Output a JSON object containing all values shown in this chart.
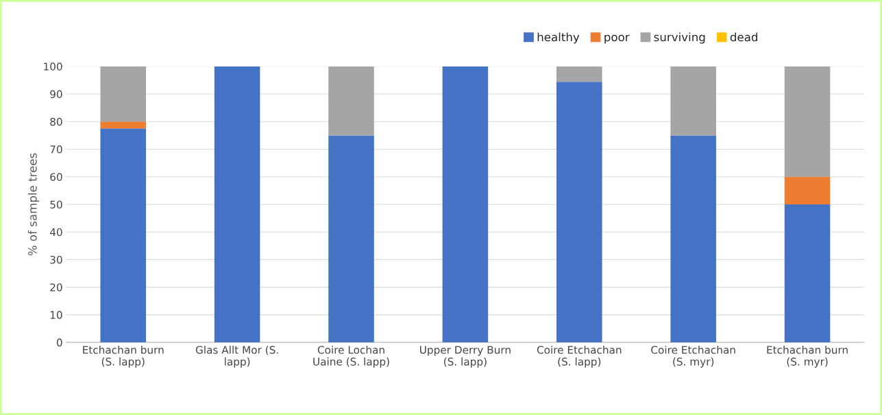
{
  "chart_data": {
    "type": "bar",
    "stacked": true,
    "ylabel": "% of sample trees",
    "categories": [
      "Etchachan burn\n(S. lapp)",
      "Glas Allt Mor (S.\nlapp)",
      "Coire Lochan\nUaine (S. lapp)",
      "Upper Derry Burn\n(S. lapp)",
      "Coire Etchachan\n(S. lapp)",
      "Coire Etchachan\n(S. myr)",
      "Etchachan burn\n(S. myr)"
    ],
    "series": [
      {
        "name": "healthy",
        "color": "#4472c4",
        "values": [
          77.5,
          100,
          75,
          100,
          94.4,
          75,
          50
        ]
      },
      {
        "name": "poor",
        "color": "#ed7d31",
        "values": [
          2.5,
          0,
          0,
          0,
          0,
          0,
          10
        ]
      },
      {
        "name": "surviving",
        "color": "#a5a5a5",
        "values": [
          20,
          0,
          25,
          0,
          5.6,
          25,
          40
        ]
      },
      {
        "name": "dead",
        "color": "#ffc000",
        "values": [
          0,
          0,
          0,
          0,
          0,
          0,
          0
        ]
      }
    ],
    "ylim": [
      0,
      100
    ],
    "yticks": [
      0,
      10,
      20,
      30,
      40,
      50,
      60,
      70,
      80,
      90,
      100
    ],
    "grid": "y",
    "legend": "top right"
  }
}
